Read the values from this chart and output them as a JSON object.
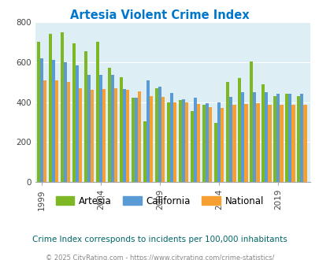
{
  "title": "Artesia Violent Crime Index",
  "title_color": "#0077cc",
  "subtitle": "Crime Index corresponds to incidents per 100,000 inhabitants",
  "subtitle_color": "#006666",
  "footer": "© 2025 CityRating.com - https://www.cityrating.com/crime-statistics/",
  "footer_color": "#888888",
  "years": [
    1999,
    2000,
    2001,
    2002,
    2003,
    2004,
    2005,
    2006,
    2007,
    2008,
    2009,
    2010,
    2011,
    2012,
    2013,
    2014,
    2015,
    2016,
    2017,
    2018,
    2019,
    2020,
    2021
  ],
  "artesia": [
    700,
    740,
    750,
    695,
    655,
    700,
    570,
    525,
    420,
    305,
    470,
    400,
    410,
    355,
    385,
    295,
    500,
    520,
    605,
    490,
    430,
    440,
    430
  ],
  "california": [
    620,
    610,
    600,
    585,
    535,
    535,
    535,
    465,
    420,
    510,
    475,
    445,
    415,
    420,
    395,
    400,
    425,
    450,
    450,
    450,
    440,
    440,
    440
  ],
  "national": [
    507,
    507,
    500,
    470,
    460,
    465,
    470,
    460,
    455,
    430,
    425,
    400,
    400,
    390,
    375,
    370,
    385,
    390,
    395,
    385,
    385,
    385,
    385
  ],
  "artesia_color": "#7db824",
  "california_color": "#5b9bd5",
  "national_color": "#f6a034",
  "bg_color": "#ddeef5",
  "ylim": [
    0,
    800
  ],
  "yticks": [
    0,
    200,
    400,
    600,
    800
  ],
  "xtick_years": [
    1999,
    2004,
    2009,
    2014,
    2019
  ],
  "bar_width": 0.28
}
